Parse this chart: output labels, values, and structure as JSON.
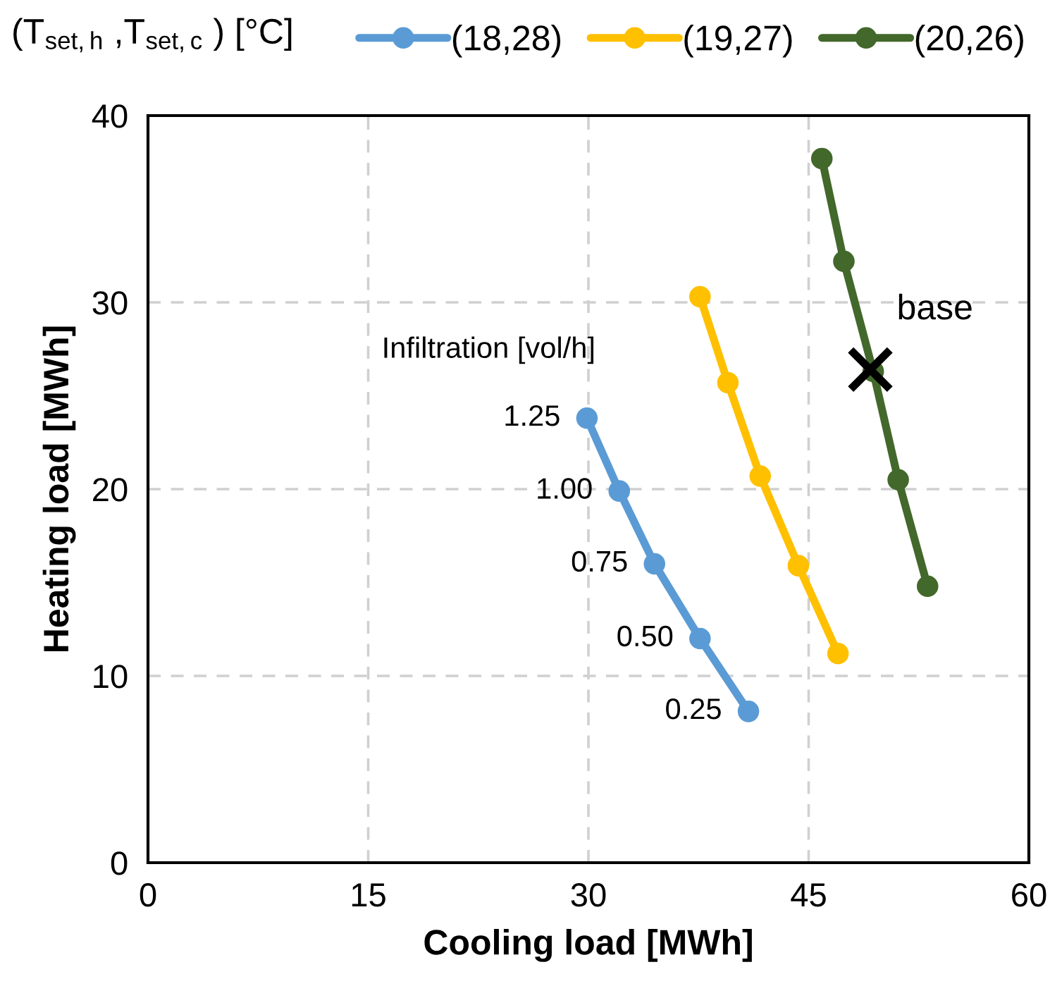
{
  "chart_data": {
    "type": "line",
    "xlabel": "Cooling load [MWh]",
    "ylabel": "Heating load [MWh]",
    "legend_title": "(T$_{set,h}$ ,T$_{set,c}$ ) [°C]",
    "xlim": [
      0,
      60
    ],
    "xticks": [
      0,
      15,
      30,
      45,
      60
    ],
    "ylim": [
      0,
      40
    ],
    "yticks": [
      0,
      10,
      20,
      30,
      40
    ],
    "grid": true,
    "legend": "top",
    "marker": "circle",
    "line_style": "solid",
    "series": [
      {
        "name": "(18,28)",
        "color": "#5b9bd5",
        "x": [
          29.9,
          32.1,
          34.5,
          37.6,
          40.9
        ],
        "values": [
          23.8,
          19.9,
          16.0,
          12.0,
          8.1
        ]
      },
      {
        "name": "(19,27)",
        "color": "#ffc000",
        "x": [
          37.6,
          39.5,
          41.7,
          44.3,
          47.0
        ],
        "values": [
          30.3,
          25.7,
          20.7,
          15.9,
          11.2
        ]
      },
      {
        "name": "(20,26)",
        "color": "#43682b",
        "x": [
          45.9,
          47.4,
          49.4,
          51.1,
          53.1
        ],
        "values": [
          37.7,
          32.2,
          26.3,
          20.5,
          14.8
        ]
      },
      {
        "type": "scatter",
        "marker": "cross",
        "color": "#000000",
        "x": [
          49.2
        ],
        "values": [
          26.4
        ]
      }
    ],
    "annotations": [
      "Infiltration [vol/h]",
      {
        "text": "1.25",
        "x": 29.9,
        "y": 23.8
      },
      {
        "text": "1.00",
        "x": 32.1,
        "y": 19.9
      },
      {
        "text": "0.75",
        "x": 34.5,
        "y": 16.0
      },
      {
        "text": "0.50",
        "x": 37.6,
        "y": 12.0
      },
      {
        "text": "0.25",
        "x": 40.9,
        "y": 8.1
      },
      {
        "text": "base",
        "x": 49.2,
        "y": 26.4
      }
    ]
  }
}
